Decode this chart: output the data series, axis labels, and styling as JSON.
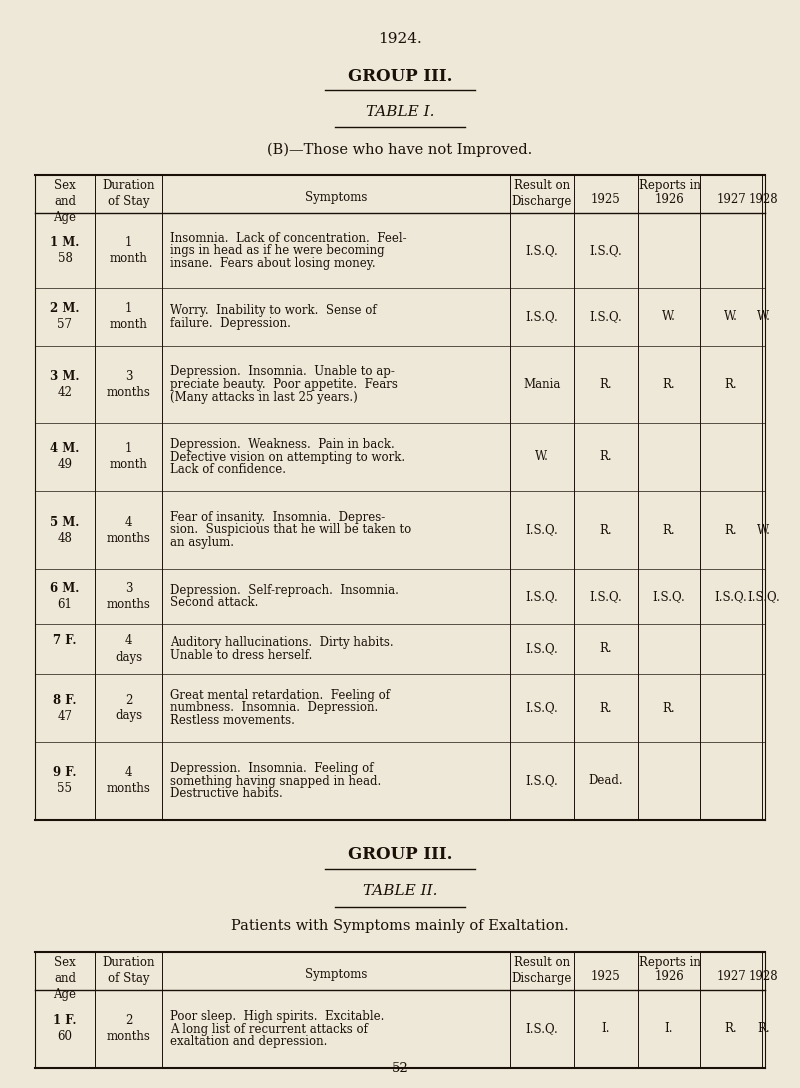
{
  "bg_color": "#ede8d8",
  "text_color": "#1a1008",
  "page_title": "1924.",
  "group_title_1": "GROUP III.",
  "table_title_1": "TABLE I.",
  "subtitle_1": "(B)—Those who have not Improved.",
  "group_title_2": "GROUP III.",
  "table_title_2": "TABLE II.",
  "subtitle_2": "Patients with Symptoms mainly of Exaltation.",
  "page_number": "52",
  "table1_rows": [
    {
      "num": "1",
      "sex": "M.",
      "age": "58",
      "duration": "1\nmonth",
      "sym_lines": [
        "Insomnia.  Lack of concentration.  Feel-",
        "ings in head as if he were becoming",
        "insane.  Fears about losing money."
      ],
      "result": "I.S.Q.",
      "reports": [
        "I.S.Q.",
        "",
        "",
        ""
      ]
    },
    {
      "num": "2",
      "sex": "M.",
      "age": "57",
      "duration": "1\nmonth",
      "sym_lines": [
        "Worry.  Inability to work.  Sense of",
        "failure.  Depression."
      ],
      "result": "I.S.Q.",
      "reports": [
        "I.S.Q.",
        "W.",
        "W.",
        "W."
      ]
    },
    {
      "num": "3",
      "sex": "M.",
      "age": "42",
      "duration": "3\nmonths",
      "sym_lines": [
        "Depression.  Insomnia.  Unable to ap-",
        "preciate beauty.  Poor appetite.  Fears",
        "(Many attacks in last 25 years.)"
      ],
      "result": "Mania",
      "reports": [
        "R.",
        "R.",
        "R.",
        ""
      ]
    },
    {
      "num": "4",
      "sex": "M.",
      "age": "49",
      "duration": "1\nmonth",
      "sym_lines": [
        "Depression.  Weakness.  Pain in back.",
        "Defective vision on attempting to work.",
        "Lack of confidence."
      ],
      "result": "W.",
      "reports": [
        "R.",
        "",
        "",
        ""
      ]
    },
    {
      "num": "5",
      "sex": "M.",
      "age": "48",
      "duration": "4\nmonths",
      "sym_lines": [
        "Fear of insanity.  Insomnia.  Depres-",
        "sion.  Suspicious that he will be taken to",
        "an asylum."
      ],
      "result": "I.S.Q.",
      "reports": [
        "R.",
        "R.",
        "R.",
        "W."
      ]
    },
    {
      "num": "6",
      "sex": "M.",
      "age": "61",
      "duration": "3\nmonths",
      "sym_lines": [
        "Depression.  Self-reproach.  Insomnia.",
        "Second attack."
      ],
      "result": "I.S.Q.",
      "reports": [
        "I.S.Q.",
        "I.S.Q.",
        "I.S.Q.",
        "I.S.Q."
      ]
    },
    {
      "num": "7",
      "sex": "F.",
      "age": "",
      "duration": "4\ndays",
      "sym_lines": [
        "Auditory hallucinations.  Dirty habits.",
        "Unable to dress herself."
      ],
      "result": "I.S.Q.",
      "reports": [
        "R.",
        "",
        "",
        ""
      ]
    },
    {
      "num": "8",
      "sex": "F.",
      "age": "47",
      "duration": "2\ndays",
      "sym_lines": [
        "Great mental retardation.  Feeling of",
        "numbness.  Insomnia.  Depression.",
        "Restless movements."
      ],
      "result": "I.S.Q.",
      "reports": [
        "R.",
        "R.",
        "",
        ""
      ]
    },
    {
      "num": "9",
      "sex": "F.",
      "age": "55",
      "duration": "4\nmonths",
      "sym_lines": [
        "Depression.  Insomnia.  Feeling of",
        "something having snapped in head.",
        "Destructive habits."
      ],
      "result": "I.S.Q.",
      "reports": [
        "Dead.",
        "",
        "",
        ""
      ]
    }
  ],
  "table2_rows": [
    {
      "num": "1",
      "sex": "F.",
      "age": "60",
      "duration": "2\nmonths",
      "sym_lines": [
        "Poor sleep.  High spirits.  Excitable.",
        "A long list of recurrent attacks of",
        "exaltation and depression."
      ],
      "result": "I.S.Q.",
      "reports": [
        "I.",
        "I.",
        "R.",
        "R."
      ]
    }
  ]
}
